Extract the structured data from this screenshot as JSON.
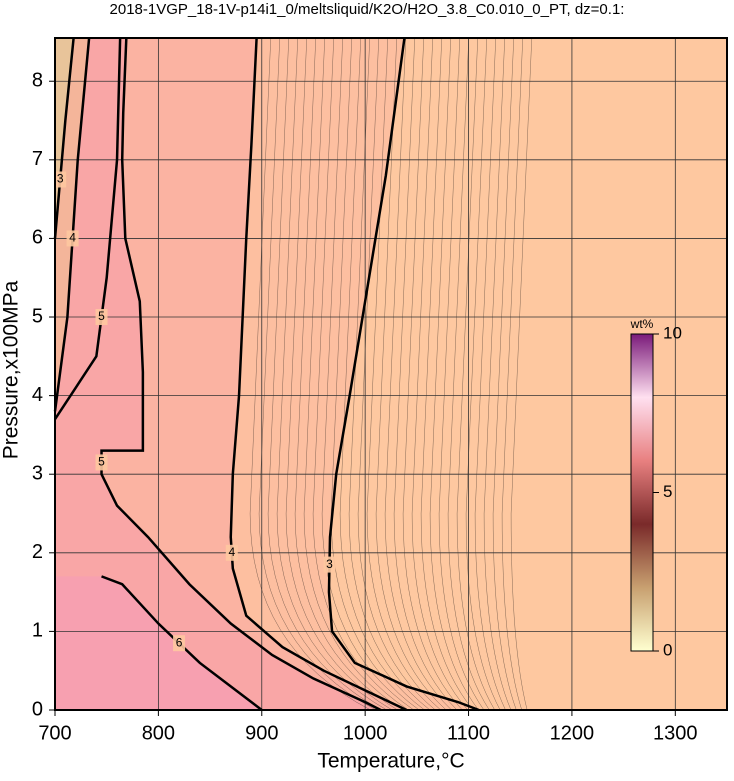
{
  "chart_data": {
    "type": "contour",
    "title": "2018-1VGP_18-1V-p14i1_0/meltsliquid/K2O/H2O_3.8_C0.010_0_PT, dz=0.1:",
    "x_label": "Temperature,°C",
    "y_label": "Pressure,x100MPa",
    "xlim": [
      700,
      1350
    ],
    "ylim": [
      0,
      8.55
    ],
    "xticks": [
      700,
      800,
      900,
      1000,
      1100,
      1200,
      1300
    ],
    "yticks": [
      0,
      1,
      2,
      3,
      4,
      5,
      6,
      7,
      8
    ],
    "grid": true,
    "background": "#fec8a0",
    "contours": [
      {
        "level": 3,
        "color": "#000000",
        "fill": "#fdbfa0",
        "x": [
          1038,
          1020,
          1000,
          985,
          972,
          966,
          965,
          968,
          990,
          1040,
          1090,
          1110
        ],
        "y": [
          8.55,
          6.8,
          5.2,
          4,
          3,
          2.2,
          1.5,
          1.0,
          0.6,
          0.3,
          0.1,
          0
        ]
      },
      {
        "level": 4,
        "color": "#000000",
        "fill": "#fbb3a2",
        "x": [
          895,
          890,
          885,
          878,
          872,
          870,
          872,
          885,
          920,
          960,
          1000,
          1040
        ],
        "y": [
          8.55,
          7.2,
          6,
          4,
          3,
          2.2,
          1.8,
          1.2,
          0.8,
          0.5,
          0.25,
          0
        ]
      },
      {
        "level": 5,
        "color": "#000000",
        "fill": "#f9a6a6",
        "x": [
          769,
          766,
          765,
          768,
          782,
          785,
          785,
          745,
          745,
          760,
          790,
          830,
          870,
          910,
          950,
          1000,
          1015
        ],
        "y": [
          8.55,
          7.6,
          7,
          6,
          5.2,
          4.3,
          3.3,
          3.3,
          3.0,
          2.6,
          2.2,
          1.6,
          1.1,
          0.7,
          0.4,
          0.1,
          0
        ]
      },
      {
        "level": 6,
        "color": "#000000",
        "fill": "#f7a0b0",
        "x": [
          745,
          765,
          800,
          840,
          880,
          900
        ],
        "y": [
          1.7,
          1.6,
          1.1,
          0.6,
          0.2,
          0
        ]
      },
      {
        "level": 5,
        "color": "#000000",
        "fill": "#f9a6a6",
        "x": [
          700,
          720,
          740,
          750,
          760,
          763
        ],
        "y": [
          3.7,
          4.1,
          4.5,
          5.5,
          7,
          8.55
        ]
      },
      {
        "level": 4,
        "color": "#000000",
        "fill": "#f4b59a",
        "x": [
          700,
          712,
          722,
          733
        ],
        "y": [
          3.8,
          5,
          7,
          8.55
        ]
      },
      {
        "level": 3,
        "color": "#000000",
        "fill": "#e8c49a",
        "x": [
          700,
          710,
          718
        ],
        "y": [
          6,
          7.5,
          8.55
        ]
      }
    ],
    "colorbar": {
      "label": "wt%",
      "lim": [
        0,
        10
      ],
      "ticks": [
        0,
        5,
        10
      ],
      "colormap": [
        "#ffffd0",
        "#c8a070",
        "#7a2a2a",
        "#e88080",
        "#ffe0f0",
        "#7a1a7a"
      ]
    }
  }
}
